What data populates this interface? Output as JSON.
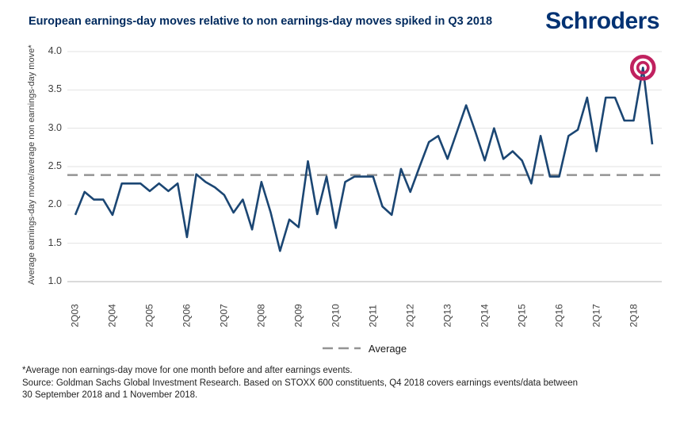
{
  "header": {
    "title": "European earnings-day moves relative to non earnings-day moves spiked in Q3 2018",
    "logo_text": "Schroders"
  },
  "chart_data": {
    "type": "line",
    "title": "European earnings-day moves relative to non earnings-day moves spiked in Q3 2018",
    "xlabel": "",
    "ylabel": "Average earnings-day move/average non earnings-day move*",
    "ylim": [
      1.0,
      4.0
    ],
    "ytick_step": 0.5,
    "ytick_labels": [
      "4.0",
      "3.5",
      "3.0",
      "2.5",
      "2.0",
      "1.5",
      "1.0"
    ],
    "x_tick_every": 4,
    "grid": true,
    "categories": [
      "2Q03",
      "3Q03",
      "4Q03",
      "1Q04",
      "2Q04",
      "3Q04",
      "4Q04",
      "1Q05",
      "2Q05",
      "3Q05",
      "4Q05",
      "1Q06",
      "2Q06",
      "3Q06",
      "4Q06",
      "1Q07",
      "2Q07",
      "3Q07",
      "4Q07",
      "1Q08",
      "2Q08",
      "3Q08",
      "4Q08",
      "1Q09",
      "2Q09",
      "3Q09",
      "4Q09",
      "1Q10",
      "2Q10",
      "3Q10",
      "4Q10",
      "1Q11",
      "2Q11",
      "3Q11",
      "4Q11",
      "1Q12",
      "2Q12",
      "3Q12",
      "4Q12",
      "1Q13",
      "2Q13",
      "3Q13",
      "4Q13",
      "1Q14",
      "2Q14",
      "3Q14",
      "4Q14",
      "1Q15",
      "2Q15",
      "3Q15",
      "4Q15",
      "1Q16",
      "2Q16",
      "3Q16",
      "4Q16",
      "1Q17",
      "2Q17",
      "3Q17",
      "4Q17",
      "1Q18",
      "2Q18",
      "3Q18",
      "4Q18"
    ],
    "series": [
      {
        "name": "Average earnings-day move/average non earnings-day move",
        "values": [
          1.87,
          2.17,
          2.07,
          2.07,
          1.87,
          2.28,
          2.28,
          2.28,
          2.18,
          2.28,
          2.18,
          2.28,
          1.58,
          2.4,
          2.3,
          2.23,
          2.13,
          1.9,
          2.07,
          1.68,
          2.3,
          1.9,
          1.4,
          1.81,
          1.71,
          2.57,
          1.88,
          2.37,
          1.7,
          2.3,
          2.37,
          2.37,
          2.37,
          1.98,
          1.87,
          2.47,
          2.17,
          2.5,
          2.82,
          2.9,
          2.6,
          2.95,
          3.3,
          2.95,
          2.58,
          3.0,
          2.6,
          2.7,
          2.58,
          2.28,
          2.9,
          2.37,
          2.37,
          2.9,
          2.98,
          3.4,
          2.7,
          3.4,
          3.4,
          3.1,
          3.1,
          3.79,
          2.79
        ]
      }
    ],
    "average_line": {
      "value": 2.39,
      "style": "dashed"
    },
    "highlight": {
      "index": 61,
      "category": "3Q18",
      "value": 3.79,
      "shape": "double-ring-bullseye"
    },
    "legend": {
      "position": "bottom-center",
      "entries": [
        {
          "label": "Average",
          "style": "dashed"
        }
      ]
    },
    "colors": {
      "line": "#1b4673",
      "average": "#949494",
      "highlight": "#c0215f",
      "grid": "#e2e2e2",
      "axis": "#c4c4c4",
      "title": "#002a5e",
      "logo": "#003273"
    }
  },
  "legend": {
    "average_label": "Average"
  },
  "footnotes": {
    "lines": [
      "*Average non earnings-day move for one month before and after earnings events.",
      "Source: Goldman Sachs Global Investment Research. Based on STOXX 600 constituents, Q4 2018 covers earnings events/data between",
      "30 September 2018 and 1 November 2018."
    ]
  }
}
